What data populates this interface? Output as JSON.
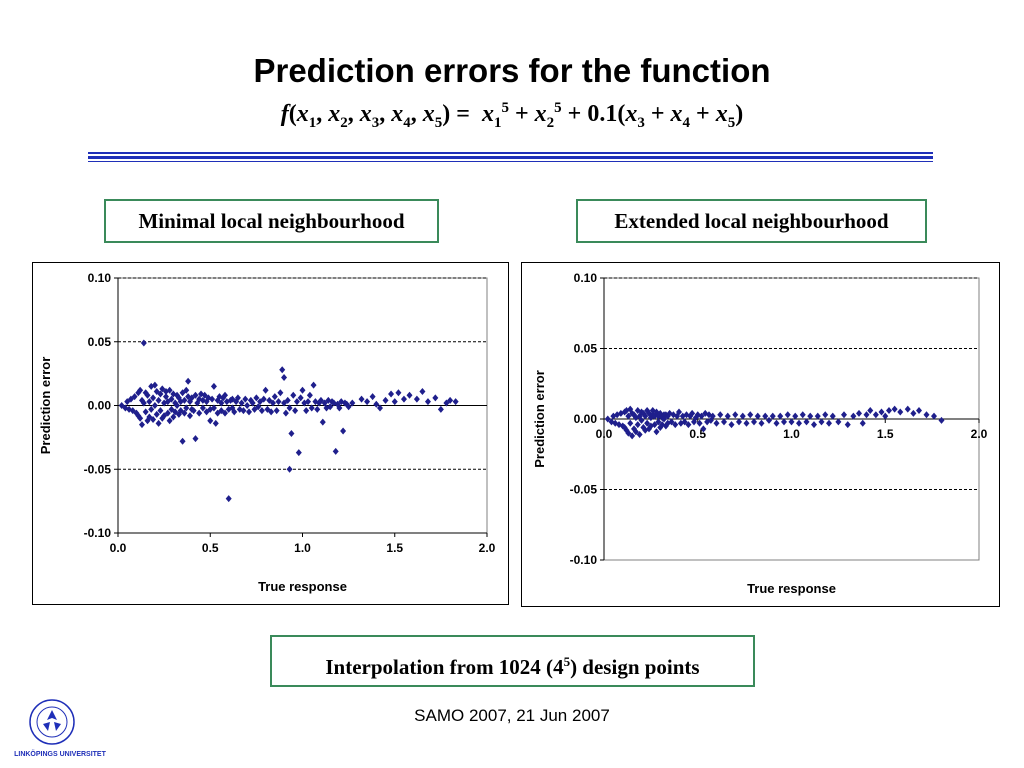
{
  "slide": {
    "title": "Prediction errors for the function",
    "formula": {
      "lhs_func": "f",
      "lhs_args": [
        "x1",
        "x2",
        "x3",
        "x4",
        "x5"
      ],
      "rhs": "x1^5 + x2^5 + 0.1(x3 + x4 + x5)"
    },
    "footer_note": "Interpolation from 1024 (4^5) design points",
    "footer_base": "4",
    "footer_exp": "5",
    "footer_prefix": "Interpolation from 1024 (",
    "footer_suffix": ") design points",
    "date_line": "SAMO 2007, 21 Jun 2007",
    "logo_text": "LINKÖPINGS UNIVERSITET",
    "accent_color": "#1f2fb8",
    "marker_color": "#1f1f8c",
    "box_border_color": "#3a8a5a"
  },
  "chart_data": [
    {
      "type": "scatter",
      "title": "Minimal local neighbourhood",
      "xlabel": "True response",
      "ylabel": "Prediction error",
      "xlim": [
        0.0,
        2.0
      ],
      "ylim": [
        -0.1,
        0.1
      ],
      "xticks": [
        "0.0",
        "0.5",
        "1.0",
        "1.5",
        "2.0"
      ],
      "yticks": [
        "0.10",
        "0.05",
        "0.00",
        "-0.05",
        "-0.10"
      ],
      "grid": "horizontal dashed",
      "x_axis_position": "bottom",
      "points": [
        [
          0.02,
          0.0
        ],
        [
          0.04,
          -0.002
        ],
        [
          0.05,
          0.003
        ],
        [
          0.06,
          -0.003
        ],
        [
          0.07,
          0.005
        ],
        [
          0.08,
          -0.004
        ],
        [
          0.09,
          0.007
        ],
        [
          0.1,
          -0.006
        ],
        [
          0.11,
          0.01
        ],
        [
          0.11,
          -0.008
        ],
        [
          0.12,
          0.012
        ],
        [
          0.12,
          -0.01
        ],
        [
          0.13,
          0.004
        ],
        [
          0.13,
          -0.015
        ],
        [
          0.14,
          0.049
        ],
        [
          0.14,
          0.002
        ],
        [
          0.15,
          -0.005
        ],
        [
          0.15,
          0.01
        ],
        [
          0.16,
          -0.012
        ],
        [
          0.16,
          0.008
        ],
        [
          0.17,
          0.003
        ],
        [
          0.17,
          -0.009
        ],
        [
          0.18,
          0.015
        ],
        [
          0.18,
          -0.003
        ],
        [
          0.19,
          0.006
        ],
        [
          0.19,
          -0.011
        ],
        [
          0.2,
          0.016
        ],
        [
          0.2,
          0.0
        ],
        [
          0.21,
          -0.007
        ],
        [
          0.21,
          0.011
        ],
        [
          0.22,
          -0.014
        ],
        [
          0.22,
          0.004
        ],
        [
          0.23,
          0.009
        ],
        [
          0.23,
          -0.004
        ],
        [
          0.24,
          0.013
        ],
        [
          0.24,
          -0.01
        ],
        [
          0.25,
          0.002
        ],
        [
          0.25,
          -0.008
        ],
        [
          0.26,
          0.007
        ],
        [
          0.26,
          0.011
        ],
        [
          0.27,
          -0.006
        ],
        [
          0.27,
          0.003
        ],
        [
          0.28,
          0.012
        ],
        [
          0.28,
          -0.012
        ],
        [
          0.29,
          0.005
        ],
        [
          0.29,
          -0.003
        ],
        [
          0.3,
          0.009
        ],
        [
          0.3,
          -0.009
        ],
        [
          0.31,
          0.002
        ],
        [
          0.31,
          -0.005
        ],
        [
          0.32,
          0.008
        ],
        [
          0.32,
          0.0
        ],
        [
          0.33,
          -0.007
        ],
        [
          0.33,
          0.006
        ],
        [
          0.34,
          0.003
        ],
        [
          0.34,
          -0.004
        ],
        [
          0.35,
          -0.028
        ],
        [
          0.35,
          0.01
        ],
        [
          0.36,
          0.004
        ],
        [
          0.36,
          -0.006
        ],
        [
          0.37,
          0.012
        ],
        [
          0.37,
          -0.002
        ],
        [
          0.38,
          0.007
        ],
        [
          0.38,
          0.019
        ],
        [
          0.39,
          -0.008
        ],
        [
          0.39,
          0.003
        ],
        [
          0.4,
          0.006
        ],
        [
          0.4,
          -0.003
        ],
        [
          0.41,
          -0.004
        ],
        [
          0.42,
          0.008
        ],
        [
          0.42,
          -0.026
        ],
        [
          0.43,
          0.002
        ],
        [
          0.44,
          0.005
        ],
        [
          0.44,
          -0.006
        ],
        [
          0.45,
          0.009
        ],
        [
          0.46,
          -0.002
        ],
        [
          0.46,
          0.004
        ],
        [
          0.47,
          0.008
        ],
        [
          0.48,
          -0.005
        ],
        [
          0.48,
          0.003
        ],
        [
          0.49,
          0.006
        ],
        [
          0.5,
          -0.003
        ],
        [
          0.5,
          -0.012
        ],
        [
          0.51,
          0.005
        ],
        [
          0.52,
          0.015
        ],
        [
          0.52,
          -0.002
        ],
        [
          0.53,
          -0.014
        ],
        [
          0.54,
          0.004
        ],
        [
          0.54,
          -0.006
        ],
        [
          0.55,
          0.007
        ],
        [
          0.56,
          0.002
        ],
        [
          0.56,
          -0.004
        ],
        [
          0.57,
          0.006
        ],
        [
          0.58,
          -0.006
        ],
        [
          0.58,
          0.008
        ],
        [
          0.59,
          0.003
        ],
        [
          0.6,
          -0.073
        ],
        [
          0.6,
          -0.003
        ],
        [
          0.61,
          0.004
        ],
        [
          0.62,
          -0.002
        ],
        [
          0.62,
          0.005
        ],
        [
          0.63,
          -0.005
        ],
        [
          0.64,
          0.003
        ],
        [
          0.65,
          0.006
        ],
        [
          0.66,
          -0.003
        ],
        [
          0.67,
          0.002
        ],
        [
          0.68,
          -0.004
        ],
        [
          0.69,
          0.005
        ],
        [
          0.7,
          0.0
        ],
        [
          0.71,
          -0.005
        ],
        [
          0.72,
          0.004
        ],
        [
          0.73,
          0.002
        ],
        [
          0.74,
          -0.003
        ],
        [
          0.75,
          0.006
        ],
        [
          0.76,
          -0.001
        ],
        [
          0.77,
          0.003
        ],
        [
          0.78,
          -0.004
        ],
        [
          0.79,
          0.005
        ],
        [
          0.8,
          0.012
        ],
        [
          0.81,
          -0.003
        ],
        [
          0.82,
          0.004
        ],
        [
          0.83,
          -0.005
        ],
        [
          0.84,
          0.002
        ],
        [
          0.85,
          0.007
        ],
        [
          0.86,
          -0.004
        ],
        [
          0.87,
          0.003
        ],
        [
          0.88,
          0.01
        ],
        [
          0.89,
          0.028
        ],
        [
          0.9,
          0.022
        ],
        [
          0.9,
          0.002
        ],
        [
          0.91,
          -0.006
        ],
        [
          0.92,
          0.004
        ],
        [
          0.93,
          -0.002
        ],
        [
          0.93,
          -0.05
        ],
        [
          0.94,
          -0.022
        ],
        [
          0.95,
          0.008
        ],
        [
          0.96,
          -0.004
        ],
        [
          0.97,
          0.003
        ],
        [
          0.98,
          -0.037
        ],
        [
          0.99,
          0.006
        ],
        [
          1.0,
          0.012
        ],
        [
          1.01,
          0.002
        ],
        [
          1.02,
          -0.004
        ],
        [
          1.03,
          0.003
        ],
        [
          1.04,
          0.008
        ],
        [
          1.05,
          -0.002
        ],
        [
          1.06,
          0.016
        ],
        [
          1.07,
          0.003
        ],
        [
          1.08,
          -0.003
        ],
        [
          1.09,
          0.002
        ],
        [
          1.1,
          0.004
        ],
        [
          1.11,
          -0.013
        ],
        [
          1.12,
          0.002
        ],
        [
          1.13,
          -0.002
        ],
        [
          1.14,
          0.004
        ],
        [
          1.15,
          -0.001
        ],
        [
          1.16,
          0.003
        ],
        [
          1.17,
          0.002
        ],
        [
          1.18,
          -0.036
        ],
        [
          1.19,
          0.001
        ],
        [
          1.2,
          -0.002
        ],
        [
          1.21,
          0.003
        ],
        [
          1.22,
          -0.02
        ],
        [
          1.23,
          0.002
        ],
        [
          1.24,
          0.001
        ],
        [
          1.25,
          -0.001
        ],
        [
          1.27,
          0.002
        ],
        [
          1.32,
          0.005
        ],
        [
          1.35,
          0.003
        ],
        [
          1.38,
          0.007
        ],
        [
          1.4,
          0.001
        ],
        [
          1.42,
          -0.002
        ],
        [
          1.45,
          0.004
        ],
        [
          1.48,
          0.009
        ],
        [
          1.5,
          0.003
        ],
        [
          1.52,
          0.01
        ],
        [
          1.55,
          0.005
        ],
        [
          1.58,
          0.008
        ],
        [
          1.62,
          0.005
        ],
        [
          1.65,
          0.011
        ],
        [
          1.68,
          0.003
        ],
        [
          1.72,
          0.006
        ],
        [
          1.75,
          -0.003
        ],
        [
          1.78,
          0.002
        ],
        [
          1.8,
          0.004
        ],
        [
          1.83,
          0.003
        ]
      ]
    },
    {
      "type": "scatter",
      "title": "Extended local neighbourhood",
      "xlabel": "True response",
      "ylabel": "Prediction error",
      "xlim": [
        0.0,
        2.0
      ],
      "ylim": [
        -0.1,
        0.1
      ],
      "xticks": [
        "0.0",
        "0.5",
        "1.0",
        "1.5",
        "2.0"
      ],
      "yticks": [
        "0.10",
        "0.05",
        "0.00",
        "-0.05",
        "-0.10"
      ],
      "grid": "horizontal dashed",
      "x_axis_position": "zero",
      "points": [
        [
          0.02,
          0.0
        ],
        [
          0.04,
          -0.002
        ],
        [
          0.05,
          0.002
        ],
        [
          0.06,
          -0.003
        ],
        [
          0.07,
          0.003
        ],
        [
          0.08,
          -0.004
        ],
        [
          0.09,
          0.004
        ],
        [
          0.1,
          -0.005
        ],
        [
          0.11,
          0.005
        ],
        [
          0.11,
          -0.006
        ],
        [
          0.12,
          0.006
        ],
        [
          0.12,
          -0.008
        ],
        [
          0.13,
          0.002
        ],
        [
          0.13,
          -0.01
        ],
        [
          0.14,
          0.007
        ],
        [
          0.14,
          -0.003
        ],
        [
          0.15,
          -0.012
        ],
        [
          0.15,
          0.004
        ],
        [
          0.16,
          -0.007
        ],
        [
          0.16,
          0.003
        ],
        [
          0.17,
          0.001
        ],
        [
          0.17,
          -0.009
        ],
        [
          0.18,
          0.006
        ],
        [
          0.18,
          -0.004
        ],
        [
          0.19,
          0.002
        ],
        [
          0.19,
          -0.011
        ],
        [
          0.2,
          0.005
        ],
        [
          0.2,
          -0.001
        ],
        [
          0.21,
          -0.006
        ],
        [
          0.21,
          0.004
        ],
        [
          0.22,
          -0.008
        ],
        [
          0.22,
          0.002
        ],
        [
          0.23,
          0.006
        ],
        [
          0.23,
          -0.003
        ],
        [
          0.24,
          0.004
        ],
        [
          0.24,
          -0.007
        ],
        [
          0.25,
          0.001
        ],
        [
          0.25,
          -0.005
        ],
        [
          0.26,
          0.003
        ],
        [
          0.26,
          0.006
        ],
        [
          0.27,
          -0.004
        ],
        [
          0.27,
          0.002
        ],
        [
          0.28,
          0.005
        ],
        [
          0.28,
          -0.009
        ],
        [
          0.29,
          0.002
        ],
        [
          0.29,
          -0.002
        ],
        [
          0.3,
          0.004
        ],
        [
          0.3,
          -0.006
        ],
        [
          0.31,
          0.001
        ],
        [
          0.31,
          -0.004
        ],
        [
          0.32,
          0.003
        ],
        [
          0.32,
          0.0
        ],
        [
          0.33,
          -0.005
        ],
        [
          0.33,
          0.003
        ],
        [
          0.34,
          0.002
        ],
        [
          0.34,
          -0.003
        ],
        [
          0.35,
          0.004
        ],
        [
          0.36,
          -0.002
        ],
        [
          0.37,
          0.003
        ],
        [
          0.38,
          -0.004
        ],
        [
          0.39,
          0.002
        ],
        [
          0.4,
          0.005
        ],
        [
          0.41,
          -0.003
        ],
        [
          0.42,
          0.002
        ],
        [
          0.43,
          -0.002
        ],
        [
          0.44,
          0.003
        ],
        [
          0.45,
          -0.004
        ],
        [
          0.46,
          0.002
        ],
        [
          0.47,
          0.004
        ],
        [
          0.48,
          -0.002
        ],
        [
          0.49,
          0.001
        ],
        [
          0.5,
          0.003
        ],
        [
          0.51,
          -0.003
        ],
        [
          0.52,
          0.002
        ],
        [
          0.53,
          -0.007
        ],
        [
          0.54,
          0.004
        ],
        [
          0.55,
          -0.002
        ],
        [
          0.56,
          0.003
        ],
        [
          0.57,
          -0.001
        ],
        [
          0.58,
          0.002
        ],
        [
          0.6,
          -0.003
        ],
        [
          0.62,
          0.003
        ],
        [
          0.64,
          -0.002
        ],
        [
          0.66,
          0.002
        ],
        [
          0.68,
          -0.004
        ],
        [
          0.7,
          0.003
        ],
        [
          0.72,
          -0.002
        ],
        [
          0.74,
          0.002
        ],
        [
          0.76,
          -0.003
        ],
        [
          0.78,
          0.003
        ],
        [
          0.8,
          -0.002
        ],
        [
          0.82,
          0.002
        ],
        [
          0.84,
          -0.003
        ],
        [
          0.86,
          0.002
        ],
        [
          0.88,
          -0.001
        ],
        [
          0.9,
          0.002
        ],
        [
          0.92,
          -0.003
        ],
        [
          0.94,
          0.002
        ],
        [
          0.96,
          -0.002
        ],
        [
          0.98,
          0.003
        ],
        [
          1.0,
          -0.002
        ],
        [
          1.02,
          0.002
        ],
        [
          1.04,
          -0.003
        ],
        [
          1.06,
          0.003
        ],
        [
          1.08,
          -0.002
        ],
        [
          1.1,
          0.002
        ],
        [
          1.12,
          -0.004
        ],
        [
          1.14,
          0.002
        ],
        [
          1.16,
          -0.002
        ],
        [
          1.18,
          0.003
        ],
        [
          1.2,
          -0.003
        ],
        [
          1.22,
          0.002
        ],
        [
          1.25,
          -0.002
        ],
        [
          1.28,
          0.003
        ],
        [
          1.3,
          -0.004
        ],
        [
          1.33,
          0.002
        ],
        [
          1.36,
          0.004
        ],
        [
          1.38,
          -0.003
        ],
        [
          1.4,
          0.003
        ],
        [
          1.42,
          0.006
        ],
        [
          1.45,
          0.003
        ],
        [
          1.48,
          0.005
        ],
        [
          1.5,
          0.002
        ],
        [
          1.52,
          0.006
        ],
        [
          1.55,
          0.007
        ],
        [
          1.58,
          0.005
        ],
        [
          1.62,
          0.007
        ],
        [
          1.65,
          0.004
        ],
        [
          1.68,
          0.006
        ],
        [
          1.72,
          0.003
        ],
        [
          1.76,
          0.002
        ],
        [
          1.8,
          -0.001
        ]
      ]
    }
  ]
}
